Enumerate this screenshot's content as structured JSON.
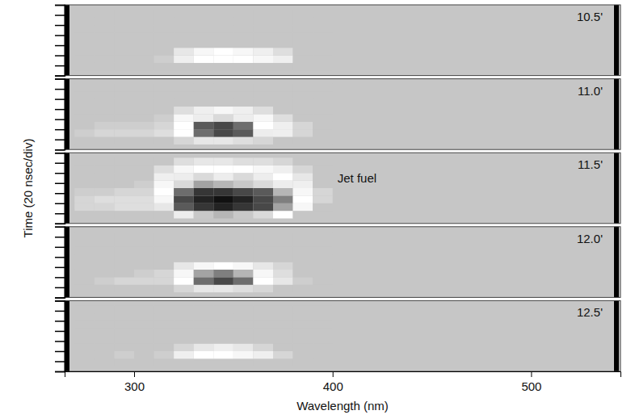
{
  "chart_data": {
    "type": "heatmap",
    "x_label": "Wavelength (nm)",
    "y_label": "Time (20 nsec/div)",
    "xlim": [
      265,
      545
    ],
    "xticks": [
      300,
      400,
      500
    ],
    "ylim": [
      0,
      140
    ],
    "yticks": [
      0,
      20,
      40,
      60,
      80,
      100,
      120,
      140
    ],
    "tick_labels": "x",
    "x_edges": [
      270,
      280,
      290,
      300,
      310,
      320,
      330,
      340,
      350,
      360,
      370,
      380,
      390,
      400
    ],
    "y_edges": [
      10,
      25,
      40,
      55,
      70,
      85,
      100,
      115,
      130
    ],
    "zlim": [
      0,
      100
    ],
    "panels": [
      {
        "title": "10.5'",
        "z": [
          [
            0,
            0,
            0,
            0,
            0,
            0,
            0,
            0,
            0,
            0,
            0,
            0,
            0
          ],
          [
            0,
            0,
            0,
            0,
            5,
            25,
            35,
            35,
            35,
            30,
            25,
            0,
            0
          ],
          [
            0,
            0,
            0,
            0,
            0,
            20,
            30,
            35,
            30,
            25,
            15,
            0,
            0
          ],
          [
            0,
            0,
            0,
            0,
            0,
            0,
            0,
            0,
            0,
            0,
            0,
            0,
            0
          ],
          [
            0,
            0,
            0,
            0,
            0,
            0,
            0,
            0,
            0,
            0,
            0,
            0,
            0
          ],
          [
            0,
            0,
            0,
            0,
            0,
            0,
            0,
            0,
            0,
            0,
            0,
            0,
            0
          ],
          [
            0,
            0,
            0,
            0,
            0,
            0,
            0,
            0,
            0,
            0,
            0,
            0,
            0
          ],
          [
            0,
            0,
            0,
            0,
            0,
            0,
            0,
            0,
            0,
            0,
            0,
            0,
            0
          ]
        ]
      },
      {
        "title": "11.0'",
        "z": [
          [
            0,
            0,
            0,
            0,
            0,
            10,
            20,
            20,
            15,
            10,
            0,
            0,
            0
          ],
          [
            5,
            10,
            10,
            10,
            15,
            35,
            75,
            85,
            80,
            40,
            25,
            10,
            0
          ],
          [
            0,
            5,
            5,
            5,
            10,
            35,
            80,
            85,
            75,
            35,
            25,
            10,
            0
          ],
          [
            0,
            0,
            0,
            0,
            5,
            30,
            40,
            45,
            40,
            30,
            15,
            0,
            0
          ],
          [
            0,
            0,
            0,
            0,
            0,
            15,
            25,
            30,
            25,
            15,
            0,
            0,
            0
          ],
          [
            0,
            0,
            0,
            0,
            0,
            0,
            0,
            0,
            0,
            0,
            0,
            0,
            0
          ],
          [
            0,
            0,
            0,
            0,
            0,
            0,
            0,
            0,
            0,
            0,
            0,
            0,
            0
          ],
          [
            0,
            0,
            0,
            0,
            0,
            0,
            0,
            0,
            0,
            0,
            0,
            0,
            0
          ]
        ]
      },
      {
        "title": "11.5'",
        "annotations": [
          {
            "text": "Jet fuel"
          }
        ],
        "z": [
          [
            0,
            0,
            0,
            0,
            0,
            40,
            50,
            55,
            50,
            45,
            35,
            0,
            0
          ],
          [
            10,
            10,
            15,
            15,
            20,
            80,
            90,
            95,
            90,
            85,
            60,
            30,
            0
          ],
          [
            10,
            15,
            15,
            15,
            30,
            85,
            95,
            100,
            95,
            85,
            70,
            35,
            10
          ],
          [
            5,
            5,
            10,
            10,
            35,
            75,
            90,
            90,
            85,
            80,
            55,
            30,
            10
          ],
          [
            0,
            0,
            0,
            5,
            30,
            45,
            60,
            55,
            50,
            45,
            40,
            25,
            0
          ],
          [
            0,
            0,
            0,
            0,
            25,
            40,
            45,
            40,
            45,
            40,
            35,
            20,
            0
          ],
          [
            0,
            0,
            0,
            0,
            15,
            30,
            35,
            35,
            35,
            30,
            25,
            10,
            0
          ],
          [
            0,
            0,
            0,
            0,
            0,
            15,
            20,
            20,
            15,
            15,
            10,
            0,
            0
          ]
        ]
      },
      {
        "title": "12.0'",
        "z": [
          [
            0,
            0,
            0,
            0,
            0,
            10,
            20,
            20,
            15,
            10,
            0,
            0,
            0
          ],
          [
            0,
            5,
            10,
            10,
            10,
            35,
            75,
            85,
            75,
            35,
            20,
            5,
            0
          ],
          [
            0,
            0,
            0,
            5,
            10,
            30,
            60,
            70,
            55,
            30,
            15,
            0,
            0
          ],
          [
            0,
            0,
            0,
            0,
            0,
            20,
            30,
            35,
            30,
            20,
            10,
            0,
            0
          ],
          [
            0,
            0,
            0,
            0,
            0,
            0,
            0,
            0,
            0,
            0,
            0,
            0,
            0
          ],
          [
            0,
            0,
            0,
            0,
            0,
            0,
            0,
            0,
            0,
            0,
            0,
            0,
            0
          ],
          [
            0,
            0,
            0,
            0,
            0,
            0,
            0,
            0,
            0,
            0,
            0,
            0,
            0
          ],
          [
            0,
            0,
            0,
            0,
            0,
            0,
            0,
            0,
            0,
            0,
            0,
            0,
            0
          ]
        ]
      },
      {
        "title": "12.5'",
        "z": [
          [
            0,
            0,
            0,
            0,
            0,
            0,
            0,
            0,
            0,
            0,
            0,
            0,
            0
          ],
          [
            0,
            0,
            5,
            0,
            5,
            25,
            35,
            35,
            30,
            25,
            10,
            0,
            0
          ],
          [
            0,
            0,
            0,
            0,
            0,
            10,
            20,
            25,
            20,
            10,
            0,
            0,
            0
          ],
          [
            0,
            0,
            0,
            0,
            0,
            0,
            0,
            0,
            0,
            0,
            0,
            0,
            0
          ],
          [
            0,
            0,
            0,
            0,
            0,
            0,
            0,
            0,
            0,
            0,
            0,
            0,
            0
          ],
          [
            0,
            0,
            0,
            0,
            0,
            0,
            0,
            0,
            0,
            0,
            0,
            0,
            0
          ],
          [
            0,
            0,
            0,
            0,
            0,
            0,
            0,
            0,
            0,
            0,
            0,
            0,
            0
          ],
          [
            0,
            0,
            0,
            0,
            0,
            0,
            0,
            0,
            0,
            0,
            0,
            0,
            0
          ]
        ]
      }
    ]
  }
}
